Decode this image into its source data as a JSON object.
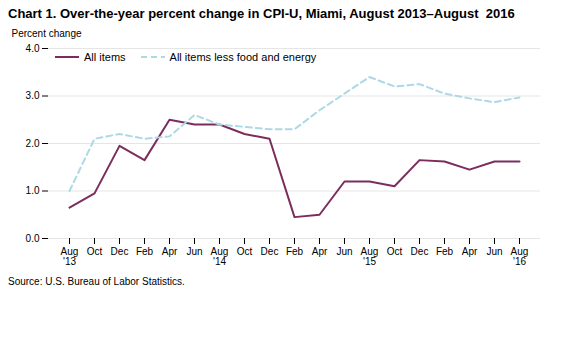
{
  "chart_data": {
    "type": "line",
    "title": "Chart 1. Over-the-year percent change in CPI-U, Miami, August 2013–August  2016",
    "ylabel": "Percent change",
    "source": "Source: U.S. Bureau of Labor Statistics.",
    "categories": [
      "Aug\n'13",
      "Oct",
      "Dec",
      "Feb",
      "Apr",
      "Jun",
      "Aug\n'14",
      "Oct",
      "Dec",
      "Feb",
      "Apr",
      "Jun",
      "Aug\n'15",
      "Oct",
      "Dec",
      "Feb",
      "Apr",
      "Jun",
      "Aug\n'16"
    ],
    "series": [
      {
        "name": "All items",
        "color": "#7B2D5E",
        "line_style": "solid",
        "values": [
          0.65,
          0.95,
          1.95,
          1.65,
          2.5,
          2.4,
          2.4,
          2.2,
          2.1,
          0.45,
          0.5,
          1.2,
          1.2,
          1.1,
          1.65,
          1.62,
          1.45,
          1.62,
          1.62
        ]
      },
      {
        "name": "All items less food and energy",
        "color": "#ADD8E6",
        "line_style": "dashed",
        "values": [
          1.0,
          2.1,
          2.2,
          2.1,
          2.15,
          2.6,
          2.4,
          2.35,
          2.3,
          2.3,
          2.7,
          3.05,
          3.4,
          3.2,
          3.25,
          3.05,
          2.95,
          2.87,
          2.97
        ]
      }
    ],
    "ylim": [
      0.0,
      4.0
    ],
    "yticks": [
      {
        "value": 0,
        "label": "0.0"
      },
      {
        "value": 1,
        "label": "1.0"
      },
      {
        "value": 2,
        "label": "2.0"
      },
      {
        "value": 3,
        "label": "3.0"
      },
      {
        "value": 4,
        "label": "4.0"
      }
    ],
    "grid": true,
    "legend": "upper left"
  }
}
